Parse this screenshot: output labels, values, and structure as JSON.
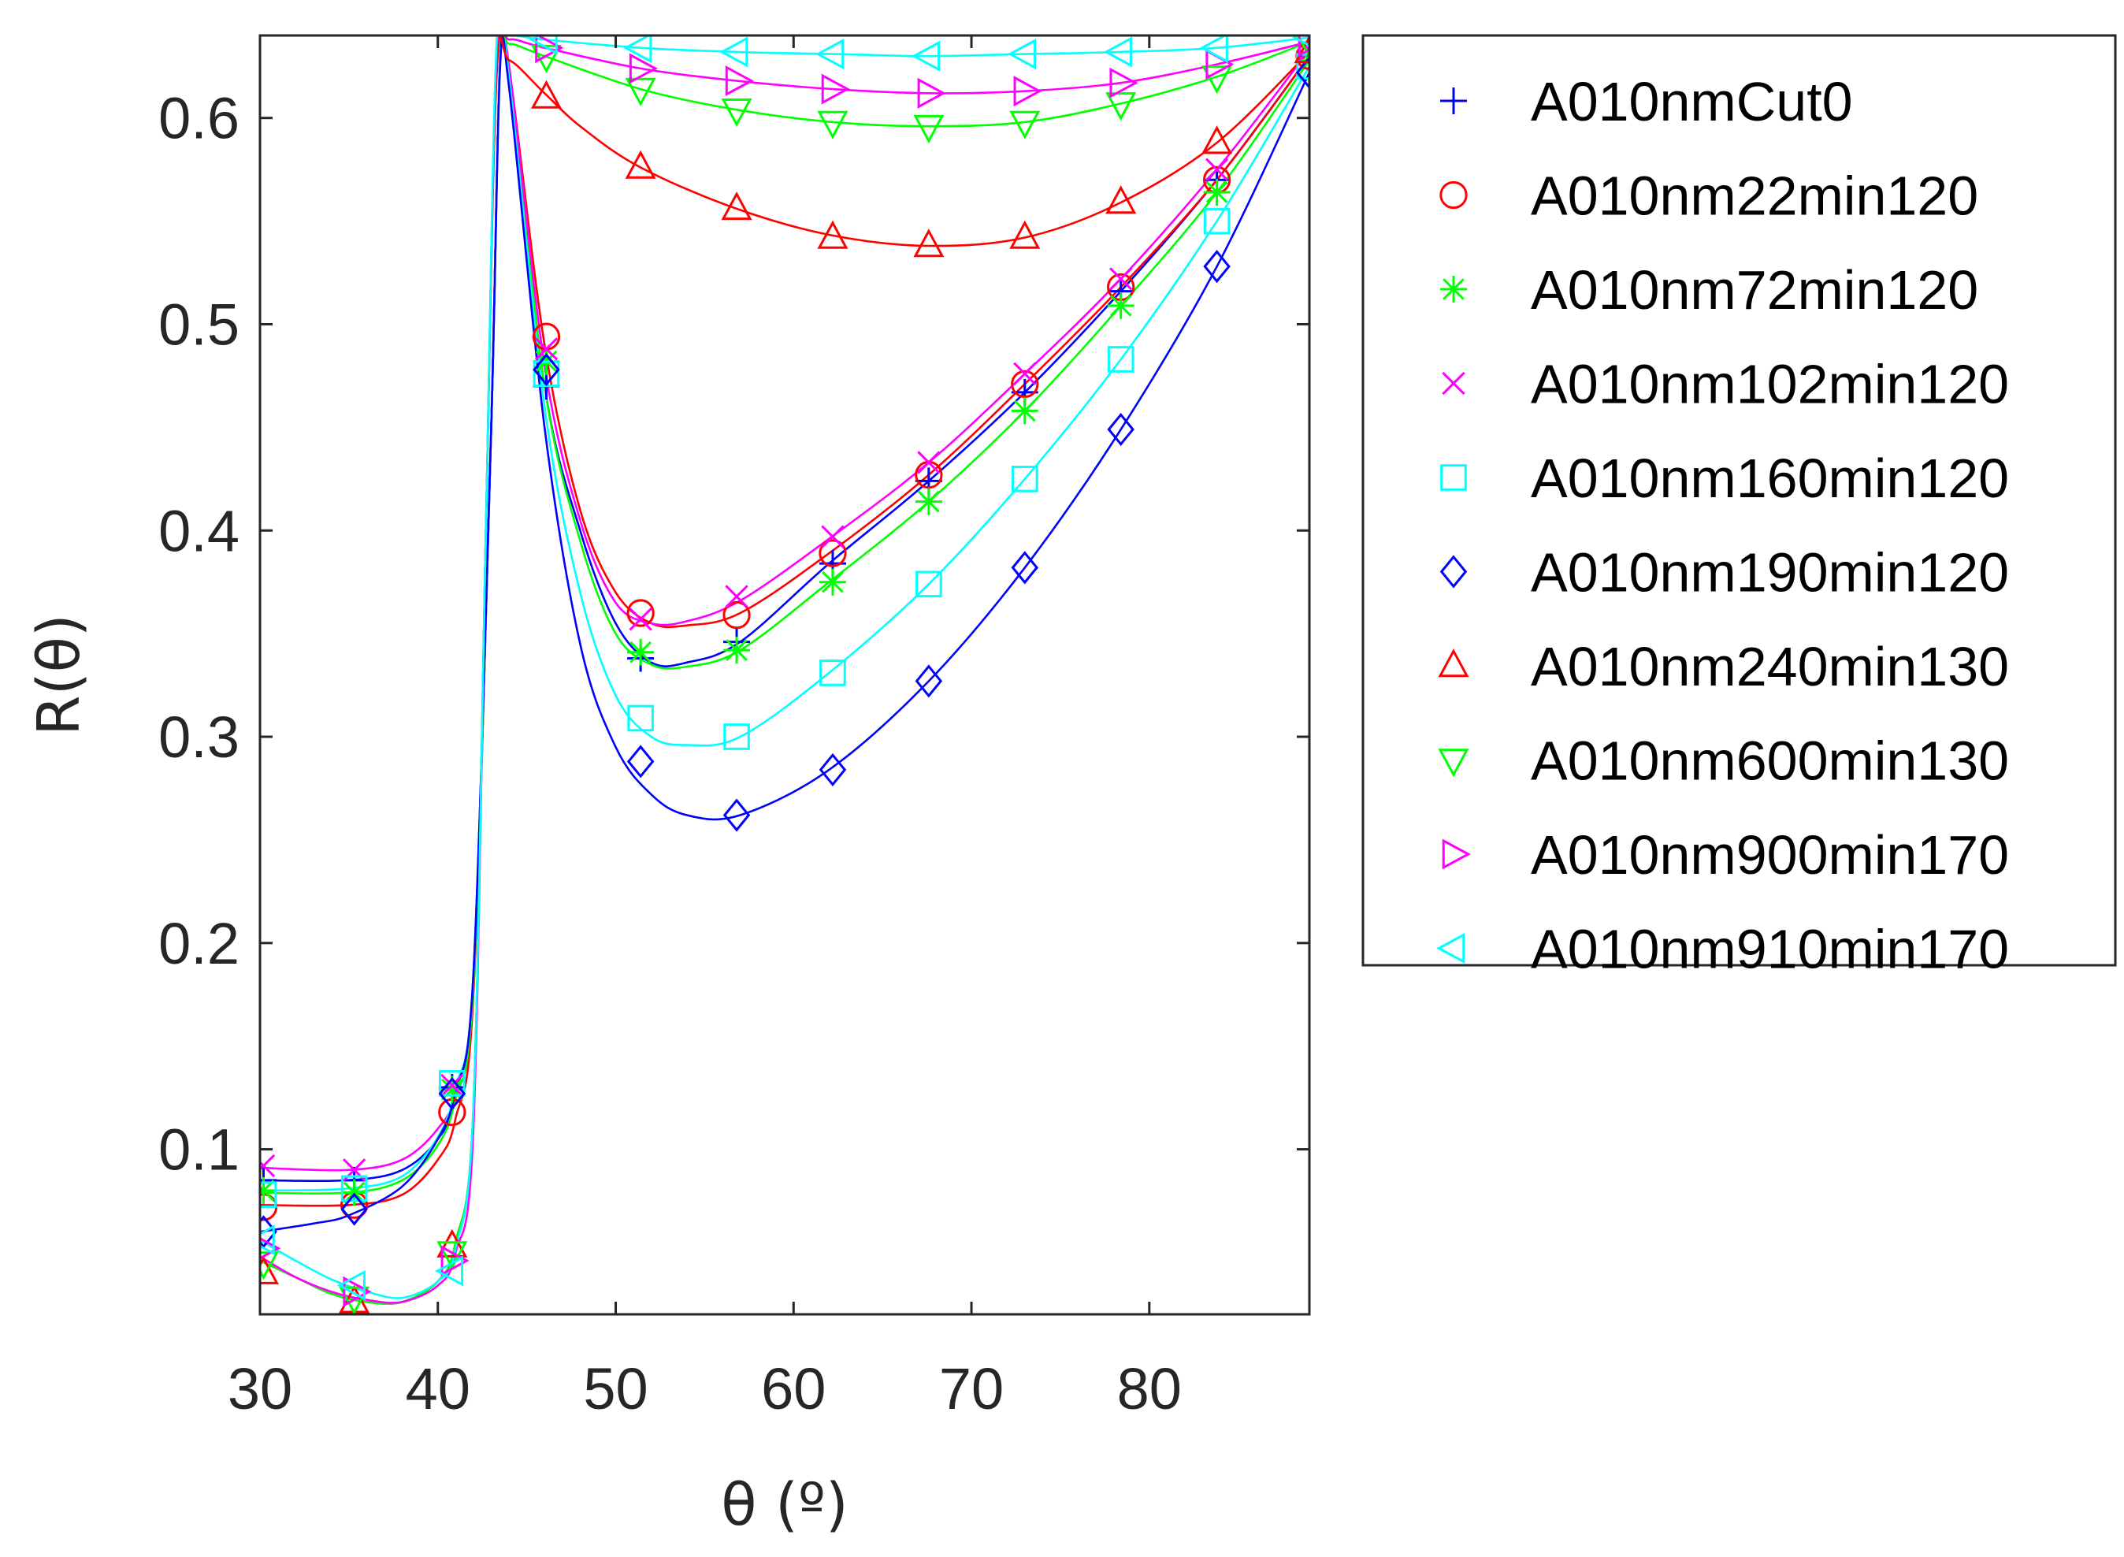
{
  "chart_data": {
    "type": "line",
    "title": "",
    "xlabel": "θ (º)",
    "ylabel": "R(θ)",
    "xlim": [
      30,
      89
    ],
    "ylim": [
      0.02,
      0.64
    ],
    "xticks": [
      30,
      40,
      50,
      60,
      70,
      80
    ],
    "xtick_labels": [
      "30",
      "40",
      "50",
      "60",
      "70",
      "80"
    ],
    "yticks": [
      0.1,
      0.2,
      0.3,
      0.4,
      0.5,
      0.6
    ],
    "ytick_labels": [
      "0.1",
      "0.2",
      "0.3",
      "0.4",
      "0.5",
      "0.6"
    ],
    "grid": false,
    "legend_position": "outside-right",
    "x": [
      30.2,
      35.3,
      40.8,
      46.1,
      51.4,
      56.8,
      62.2,
      67.6,
      73.0,
      78.4,
      83.8,
      89.0
    ],
    "series": [
      {
        "name": "A010nmCut0",
        "color": "#0000ff",
        "marker": "plus",
        "values": [
          0.085,
          0.085,
          0.13,
          0.47,
          0.338,
          0.346,
          0.384,
          0.424,
          0.467,
          0.516,
          0.57,
          0.63
        ],
        "curve": [
          [
            30,
            0.085
          ],
          [
            35,
            0.085
          ],
          [
            38,
            0.09
          ],
          [
            40,
            0.105
          ],
          [
            41,
            0.125
          ],
          [
            42,
            0.18
          ],
          [
            43,
            0.45
          ],
          [
            43.5,
            0.63
          ],
          [
            44,
            0.62
          ],
          [
            46,
            0.47
          ],
          [
            48,
            0.4
          ],
          [
            50,
            0.355
          ],
          [
            52,
            0.336
          ],
          [
            54,
            0.336
          ],
          [
            57,
            0.346
          ],
          [
            62,
            0.384
          ],
          [
            67.6,
            0.424
          ],
          [
            73,
            0.467
          ],
          [
            78.4,
            0.516
          ],
          [
            83.8,
            0.57
          ],
          [
            89,
            0.63
          ]
        ]
      },
      {
        "name": "A010nm22min120",
        "color": "#ff0000",
        "marker": "circle",
        "values": [
          0.072,
          0.073,
          0.118,
          0.494,
          0.36,
          0.359,
          0.389,
          0.427,
          0.471,
          0.518,
          0.57,
          0.63
        ],
        "curve": [
          [
            30,
            0.073
          ],
          [
            35,
            0.073
          ],
          [
            38,
            0.078
          ],
          [
            40,
            0.095
          ],
          [
            41,
            0.115
          ],
          [
            42,
            0.175
          ],
          [
            43,
            0.45
          ],
          [
            43.5,
            0.63
          ],
          [
            44,
            0.625
          ],
          [
            46,
            0.49
          ],
          [
            48,
            0.41
          ],
          [
            50,
            0.37
          ],
          [
            52,
            0.355
          ],
          [
            54,
            0.354
          ],
          [
            57,
            0.36
          ],
          [
            62,
            0.389
          ],
          [
            67.6,
            0.427
          ],
          [
            73,
            0.471
          ],
          [
            78.4,
            0.518
          ],
          [
            83.8,
            0.57
          ],
          [
            89,
            0.63
          ]
        ]
      },
      {
        "name": "A010nm72min120",
        "color": "#00ff00",
        "marker": "asterisk",
        "values": [
          0.08,
          0.079,
          0.129,
          0.482,
          0.341,
          0.342,
          0.375,
          0.414,
          0.458,
          0.509,
          0.564,
          0.628
        ],
        "curve": [
          [
            30,
            0.079
          ],
          [
            35,
            0.079
          ],
          [
            38,
            0.085
          ],
          [
            40,
            0.102
          ],
          [
            41,
            0.125
          ],
          [
            42,
            0.18
          ],
          [
            43,
            0.45
          ],
          [
            43.5,
            0.63
          ],
          [
            44,
            0.622
          ],
          [
            46,
            0.47
          ],
          [
            48,
            0.395
          ],
          [
            50,
            0.35
          ],
          [
            52,
            0.335
          ],
          [
            54,
            0.334
          ],
          [
            57,
            0.342
          ],
          [
            62,
            0.375
          ],
          [
            67.6,
            0.414
          ],
          [
            73,
            0.458
          ],
          [
            78.4,
            0.509
          ],
          [
            83.8,
            0.564
          ],
          [
            89,
            0.628
          ]
        ]
      },
      {
        "name": "A010nm102min120",
        "color": "#ff00ff",
        "marker": "cross",
        "values": [
          0.092,
          0.09,
          0.131,
          0.488,
          0.357,
          0.368,
          0.397,
          0.433,
          0.476,
          0.522,
          0.575,
          0.633
        ],
        "curve": [
          [
            30,
            0.091
          ],
          [
            35,
            0.09
          ],
          [
            38,
            0.095
          ],
          [
            40,
            0.11
          ],
          [
            41,
            0.128
          ],
          [
            42,
            0.185
          ],
          [
            43,
            0.45
          ],
          [
            43.5,
            0.63
          ],
          [
            44,
            0.625
          ],
          [
            46,
            0.48
          ],
          [
            48,
            0.405
          ],
          [
            50,
            0.365
          ],
          [
            52,
            0.355
          ],
          [
            54,
            0.356
          ],
          [
            57,
            0.366
          ],
          [
            62,
            0.396
          ],
          [
            67.6,
            0.433
          ],
          [
            73,
            0.476
          ],
          [
            78.4,
            0.522
          ],
          [
            83.8,
            0.575
          ],
          [
            89,
            0.633
          ]
        ]
      },
      {
        "name": "A010nm160min120",
        "color": "#00ffff",
        "marker": "square",
        "values": [
          0.078,
          0.081,
          0.132,
          0.476,
          0.309,
          0.3,
          0.331,
          0.374,
          0.425,
          0.483,
          0.55,
          0.625
        ],
        "curve": [
          [
            30,
            0.08
          ],
          [
            35,
            0.081
          ],
          [
            38,
            0.087
          ],
          [
            40,
            0.106
          ],
          [
            41,
            0.13
          ],
          [
            42,
            0.185
          ],
          [
            43,
            0.45
          ],
          [
            43.5,
            0.63
          ],
          [
            44,
            0.62
          ],
          [
            46,
            0.46
          ],
          [
            48,
            0.37
          ],
          [
            50,
            0.32
          ],
          [
            52,
            0.3
          ],
          [
            54,
            0.296
          ],
          [
            57,
            0.3
          ],
          [
            62,
            0.331
          ],
          [
            67.6,
            0.374
          ],
          [
            73,
            0.425
          ],
          [
            78.4,
            0.483
          ],
          [
            83.8,
            0.55
          ],
          [
            89,
            0.625
          ]
        ]
      },
      {
        "name": "A010nm190min120",
        "color": "#0000ff",
        "marker": "diamond",
        "values": [
          0.06,
          0.071,
          0.127,
          0.478,
          0.288,
          0.262,
          0.284,
          0.327,
          0.382,
          0.449,
          0.528,
          0.622
        ],
        "curve": [
          [
            30,
            0.06
          ],
          [
            33,
            0.064
          ],
          [
            35,
            0.068
          ],
          [
            38,
            0.082
          ],
          [
            40,
            0.105
          ],
          [
            41,
            0.128
          ],
          [
            42,
            0.185
          ],
          [
            43,
            0.45
          ],
          [
            43.5,
            0.625
          ],
          [
            44,
            0.615
          ],
          [
            46,
            0.45
          ],
          [
            48,
            0.345
          ],
          [
            50,
            0.295
          ],
          [
            52,
            0.272
          ],
          [
            54,
            0.262
          ],
          [
            57,
            0.262
          ],
          [
            62,
            0.284
          ],
          [
            67.6,
            0.327
          ],
          [
            73,
            0.382
          ],
          [
            78.4,
            0.449
          ],
          [
            83.8,
            0.528
          ],
          [
            89,
            0.622
          ]
        ]
      },
      {
        "name": "A010nm240min130",
        "color": "#ff0000",
        "marker": "triangle-up",
        "values": [
          0.04,
          0.026,
          0.053,
          0.61,
          0.576,
          0.556,
          0.542,
          0.538,
          0.542,
          0.559,
          0.588,
          0.632
        ],
        "curve": [
          [
            30,
            0.046
          ],
          [
            32,
            0.038
          ],
          [
            34,
            0.03
          ],
          [
            36,
            0.026
          ],
          [
            38,
            0.026
          ],
          [
            40,
            0.036
          ],
          [
            41,
            0.055
          ],
          [
            42,
            0.12
          ],
          [
            42.7,
            0.4
          ],
          [
            43.3,
            0.62
          ],
          [
            44,
            0.628
          ],
          [
            46,
            0.612
          ],
          [
            48,
            0.596
          ],
          [
            51.4,
            0.576
          ],
          [
            56.8,
            0.556
          ],
          [
            62.2,
            0.543
          ],
          [
            67.6,
            0.538
          ],
          [
            73,
            0.542
          ],
          [
            78.4,
            0.559
          ],
          [
            83.8,
            0.588
          ],
          [
            89,
            0.632
          ]
        ]
      },
      {
        "name": "A010nm600min130",
        "color": "#00ff00",
        "marker": "triangle-down",
        "values": [
          0.045,
          0.028,
          0.05,
          0.63,
          0.614,
          0.604,
          0.598,
          0.596,
          0.598,
          0.607,
          0.62,
          0.637
        ],
        "curve": [
          [
            30,
            0.046
          ],
          [
            32,
            0.038
          ],
          [
            34,
            0.03
          ],
          [
            36,
            0.026
          ],
          [
            38,
            0.026
          ],
          [
            40,
            0.036
          ],
          [
            41,
            0.055
          ],
          [
            42,
            0.12
          ],
          [
            42.7,
            0.4
          ],
          [
            43.3,
            0.63
          ],
          [
            44,
            0.636
          ],
          [
            46,
            0.63
          ],
          [
            51.4,
            0.614
          ],
          [
            56.8,
            0.604
          ],
          [
            62.2,
            0.598
          ],
          [
            67.6,
            0.596
          ],
          [
            73,
            0.598
          ],
          [
            78.4,
            0.607
          ],
          [
            83.8,
            0.62
          ],
          [
            89,
            0.637
          ]
        ]
      },
      {
        "name": "A010nm900min170",
        "color": "#ff00ff",
        "marker": "triangle-right",
        "values": [
          0.052,
          0.031,
          0.046,
          0.634,
          0.624,
          0.618,
          0.614,
          0.612,
          0.613,
          0.617,
          0.626,
          0.637
        ],
        "curve": [
          [
            30,
            0.048
          ],
          [
            32,
            0.038
          ],
          [
            34,
            0.031
          ],
          [
            36,
            0.027
          ],
          [
            38,
            0.026
          ],
          [
            40,
            0.034
          ],
          [
            41,
            0.05
          ],
          [
            42,
            0.11
          ],
          [
            42.7,
            0.4
          ],
          [
            43.3,
            0.63
          ],
          [
            44,
            0.638
          ],
          [
            46,
            0.634
          ],
          [
            51.4,
            0.624
          ],
          [
            56.8,
            0.618
          ],
          [
            62.2,
            0.614
          ],
          [
            67.6,
            0.612
          ],
          [
            73,
            0.613
          ],
          [
            78.4,
            0.617
          ],
          [
            83.8,
            0.626
          ],
          [
            89,
            0.637
          ]
        ]
      },
      {
        "name": "A010nm910min170",
        "color": "#00ffff",
        "marker": "triangle-left",
        "values": [
          0.056,
          0.034,
          0.041,
          0.638,
          0.634,
          0.632,
          0.631,
          0.63,
          0.631,
          0.632,
          0.634,
          0.639
        ],
        "curve": [
          [
            30,
            0.056
          ],
          [
            32,
            0.046
          ],
          [
            34,
            0.037
          ],
          [
            36,
            0.031
          ],
          [
            38,
            0.028
          ],
          [
            40,
            0.036
          ],
          [
            41,
            0.052
          ],
          [
            42,
            0.12
          ],
          [
            42.7,
            0.4
          ],
          [
            43.3,
            0.636
          ],
          [
            44,
            0.64
          ],
          [
            46,
            0.638
          ],
          [
            51.4,
            0.634
          ],
          [
            56.8,
            0.632
          ],
          [
            62.2,
            0.631
          ],
          [
            67.6,
            0.63
          ],
          [
            73,
            0.631
          ],
          [
            78.4,
            0.632
          ],
          [
            83.8,
            0.634
          ],
          [
            89,
            0.639
          ]
        ]
      }
    ]
  }
}
